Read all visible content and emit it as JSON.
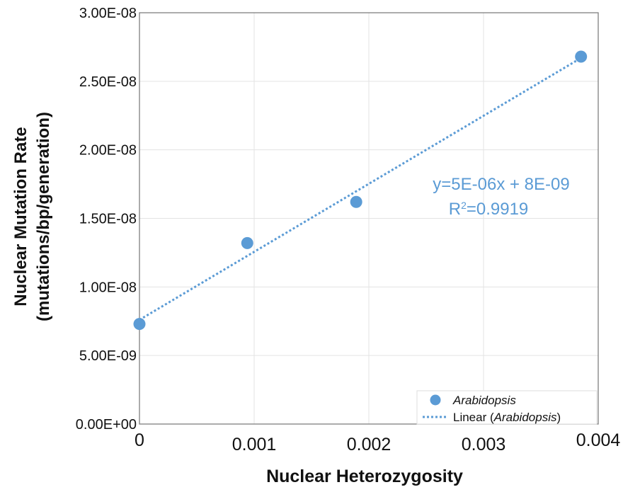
{
  "colors": {
    "series": "#5b9bd5",
    "grid": "#e3e3e3",
    "axis": "#7f7f7f",
    "text": "#111111",
    "annotation": "#5b9bd5"
  },
  "chart_data": {
    "type": "scatter",
    "title": "",
    "xlabel": "Nuclear Heterozygosity",
    "ylabel_line1": "Nuclear Mutation Rate",
    "ylabel_line2": "(mutations/bp/generation)",
    "xlim": [
      0,
      0.004
    ],
    "ylim": [
      0,
      3e-08
    ],
    "grid": true,
    "x_ticks": [
      {
        "value": 0,
        "label": "0"
      },
      {
        "value": 0.001,
        "label": "0.001"
      },
      {
        "value": 0.002,
        "label": "0.002"
      },
      {
        "value": 0.003,
        "label": "0.003"
      },
      {
        "value": 0.004,
        "label": "0.004"
      }
    ],
    "y_ticks": [
      {
        "value": 0,
        "label": "0.00E+00"
      },
      {
        "value": 5e-09,
        "label": "5.00E-09"
      },
      {
        "value": 1e-08,
        "label": "1.00E-08"
      },
      {
        "value": 1.5e-08,
        "label": "1.50E-08"
      },
      {
        "value": 2e-08,
        "label": "2.00E-08"
      },
      {
        "value": 2.5e-08,
        "label": "2.50E-08"
      },
      {
        "value": 3e-08,
        "label": "3.00E-08"
      }
    ],
    "series": [
      {
        "name": "Arabidopsis",
        "x": [
          0.0,
          0.00094,
          0.00189,
          0.00385
        ],
        "y": [
          7.3e-09,
          1.32e-08,
          1.62e-08,
          2.68e-08
        ]
      }
    ],
    "trendline": {
      "name_prefix": "Linear (",
      "name_italic": "Arabidopsis",
      "name_suffix": ")",
      "x": [
        0,
        0.00385
      ],
      "y": [
        7.6e-09,
        2.67e-08
      ]
    },
    "equation": "y=5E-06x + 8E-09",
    "r2_prefix": "R",
    "r2_sup": "2",
    "r2_value": "=0.9919",
    "legend_position": "bottom-right"
  }
}
